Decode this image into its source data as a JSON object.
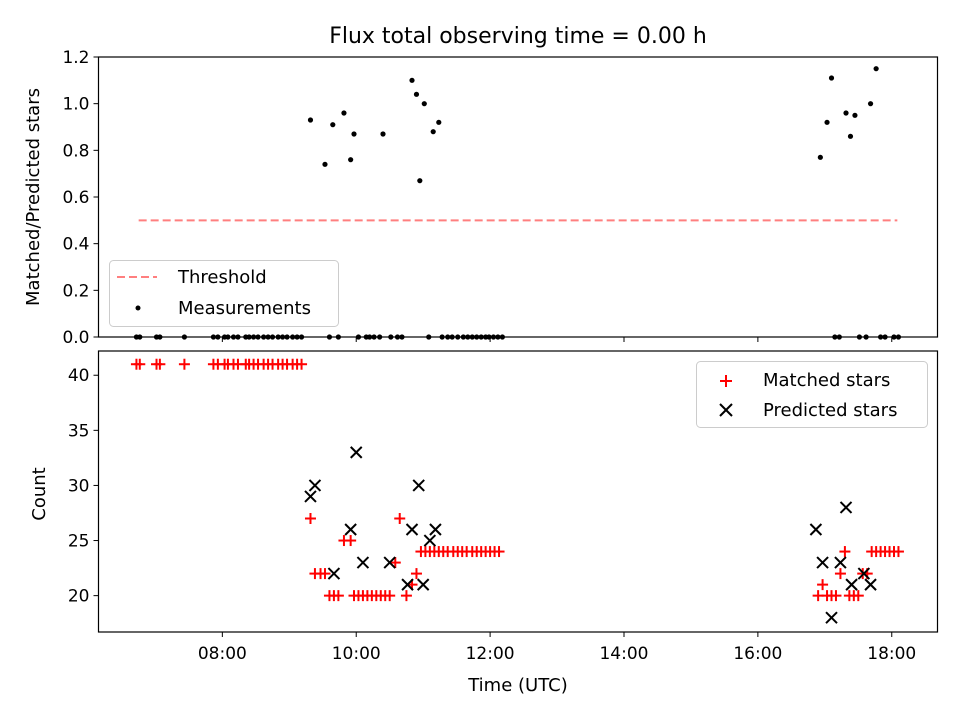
{
  "chart_data": [
    {
      "type": "scatter",
      "title": "Flux total observing time = 0.00 h",
      "xlabel": "",
      "ylabel": "Matched/Predicted stars",
      "xlim": [
        "06:09",
        "18:41"
      ],
      "ylim": [
        0,
        1.2
      ],
      "y_ticks": [
        "0.0",
        "0.2",
        "0.4",
        "0.6",
        "0.8",
        "1.0",
        "1.2"
      ],
      "legend_position": "lower-left",
      "grid": false,
      "series": [
        {
          "name": "Threshold",
          "kind": "line",
          "style": "dashed",
          "color": "#ff7f7f",
          "x": [
            "06:45",
            "18:05"
          ],
          "y": [
            0.5,
            0.5
          ]
        },
        {
          "name": "Measurements",
          "kind": "scatter",
          "color": "#000000",
          "x": [
            "06:43",
            "06:46",
            "07:01",
            "07:04",
            "07:26",
            "07:52",
            "07:56",
            "08:02",
            "08:05",
            "08:10",
            "08:14",
            "08:21",
            "08:24",
            "08:28",
            "08:32",
            "08:37",
            "08:41",
            "08:45",
            "08:50",
            "08:54",
            "08:58",
            "09:03",
            "09:07",
            "09:11",
            "09:19",
            "09:32",
            "09:36",
            "09:39",
            "09:44",
            "09:49",
            "09:55",
            "09:58",
            "10:02",
            "10:09",
            "10:12",
            "10:16",
            "10:21",
            "10:24",
            "10:31",
            "10:37",
            "10:41",
            "10:50",
            "10:54",
            "10:57",
            "11:01",
            "11:05",
            "11:09",
            "11:14",
            "11:17",
            "11:22",
            "11:26",
            "11:31",
            "11:36",
            "11:40",
            "11:44",
            "11:48",
            "11:52",
            "11:56",
            "11:59",
            "12:03",
            "12:07",
            "12:11",
            "16:56",
            "17:02",
            "17:06",
            "17:09",
            "17:13",
            "17:19",
            "17:23",
            "17:27",
            "17:31",
            "17:37",
            "17:41",
            "17:46",
            "17:50",
            "17:54",
            "18:02",
            "18:06"
          ],
          "y": [
            0,
            0,
            0,
            0,
            0,
            0,
            0,
            0,
            0,
            0,
            0,
            0,
            0,
            0,
            0,
            0,
            0,
            0,
            0,
            0,
            0,
            0,
            0,
            0,
            0.93,
            0.74,
            0,
            0.91,
            0,
            0.96,
            0.76,
            0.87,
            0,
            0,
            0,
            0,
            0,
            0.87,
            0,
            0,
            0,
            1.1,
            1.04,
            0.67,
            1.0,
            0,
            0.88,
            0.92,
            0,
            0,
            0,
            0,
            0,
            0,
            0,
            0,
            0,
            0,
            0,
            0,
            0,
            0,
            0.77,
            0.92,
            1.11,
            0,
            0,
            0.96,
            0.86,
            0.95,
            0,
            0,
            1.0,
            1.15,
            0,
            0,
            0,
            0
          ]
        }
      ]
    },
    {
      "type": "scatter",
      "title": "",
      "xlabel": "Time (UTC)",
      "ylabel": "Count",
      "xlim": [
        "06:09",
        "18:41"
      ],
      "ylim": [
        16.7,
        42.2
      ],
      "y_ticks": [
        "20",
        "25",
        "30",
        "35",
        "40"
      ],
      "x_ticks": [
        "08:00",
        "10:00",
        "12:00",
        "14:00",
        "16:00",
        "18:00"
      ],
      "legend_position": "top-right",
      "grid": false,
      "series": [
        {
          "name": "Matched stars",
          "marker": "plus",
          "color": "#ff0000",
          "x": [
            "06:43",
            "06:46",
            "07:01",
            "07:04",
            "07:26",
            "07:52",
            "07:56",
            "08:02",
            "08:05",
            "08:10",
            "08:14",
            "08:21",
            "08:24",
            "08:28",
            "08:32",
            "08:37",
            "08:41",
            "08:45",
            "08:50",
            "08:54",
            "08:58",
            "09:03",
            "09:07",
            "09:11",
            "09:19",
            "09:23",
            "09:28",
            "09:32",
            "09:36",
            "09:40",
            "09:44",
            "09:49",
            "09:55",
            "09:58",
            "10:02",
            "10:06",
            "10:10",
            "10:14",
            "10:18",
            "10:22",
            "10:26",
            "10:30",
            "10:35",
            "10:39",
            "10:45",
            "10:50",
            "10:54",
            "10:58",
            "11:02",
            "11:06",
            "11:10",
            "11:14",
            "11:18",
            "11:22",
            "11:27",
            "11:31",
            "11:35",
            "11:39",
            "11:44",
            "11:48",
            "11:52",
            "11:56",
            "12:00",
            "12:04",
            "12:08",
            "16:54",
            "16:58",
            "17:02",
            "17:06",
            "17:10",
            "17:14",
            "17:18",
            "17:22",
            "17:26",
            "17:30",
            "17:34",
            "17:38",
            "17:42",
            "17:46",
            "17:50",
            "17:54",
            "17:58",
            "18:02",
            "18:06"
          ],
          "y": [
            41,
            41,
            41,
            41,
            41,
            41,
            41,
            41,
            41,
            41,
            41,
            41,
            41,
            41,
            41,
            41,
            41,
            41,
            41,
            41,
            41,
            41,
            41,
            41,
            27,
            22,
            22,
            22,
            20,
            20,
            20,
            25,
            25,
            20,
            20,
            20,
            20,
            20,
            20,
            20,
            20,
            20,
            23,
            27,
            20,
            21,
            22,
            24,
            24,
            24,
            24,
            24,
            24,
            24,
            24,
            24,
            24,
            24,
            24,
            24,
            24,
            24,
            24,
            24,
            24,
            20,
            21,
            20,
            20,
            20,
            22,
            24,
            20,
            20,
            20,
            22,
            22,
            24,
            24,
            24,
            24,
            24,
            24,
            24
          ]
        },
        {
          "name": "Predicted stars",
          "marker": "x",
          "color": "#000000",
          "x": [
            "09:19",
            "09:23",
            "09:40",
            "09:55",
            "10:00",
            "10:06",
            "10:30",
            "10:46",
            "10:50",
            "10:56",
            "11:00",
            "11:06",
            "11:11",
            "16:52",
            "16:58",
            "17:06",
            "17:14",
            "17:19",
            "17:24",
            "17:35",
            "17:41"
          ],
          "y": [
            29,
            30,
            22,
            26,
            33,
            23,
            23,
            21,
            26,
            30,
            21,
            25,
            26,
            26,
            23,
            18,
            23,
            28,
            21,
            22,
            21
          ]
        }
      ]
    }
  ]
}
